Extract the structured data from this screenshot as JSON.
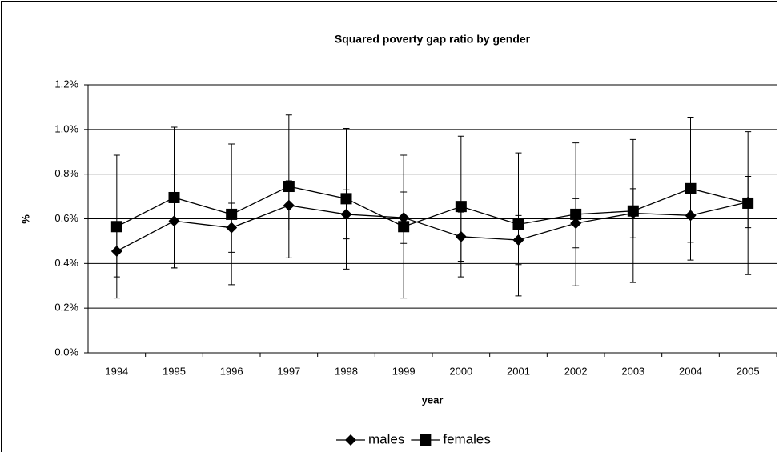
{
  "chart_data": {
    "type": "line",
    "title": "Squared poverty gap ratio by gender",
    "x_label": "year",
    "y_label": "%",
    "categories": [
      "1994",
      "1995",
      "1996",
      "1997",
      "1998",
      "1999",
      "2000",
      "2001",
      "2002",
      "2003",
      "2004",
      "2005"
    ],
    "series": [
      {
        "name": "males",
        "color": "#000000",
        "marker": "diamond",
        "values": [
          0.455,
          0.59,
          0.56,
          0.66,
          0.62,
          0.605,
          0.52,
          0.505,
          0.58,
          0.625,
          0.615,
          0.675
        ],
        "errors": [
          0.115,
          0.21,
          0.11,
          0.11,
          0.11,
          0.115,
          0.11,
          0.11,
          0.11,
          0.11,
          0.12,
          0.115
        ]
      },
      {
        "name": "females",
        "color": "#000000",
        "marker": "square",
        "values": [
          0.565,
          0.695,
          0.62,
          0.745,
          0.69,
          0.565,
          0.655,
          0.575,
          0.62,
          0.635,
          0.735,
          0.67
        ],
        "errors": [
          0.32,
          0.315,
          0.315,
          0.32,
          0.315,
          0.32,
          0.315,
          0.32,
          0.32,
          0.32,
          0.32,
          0.32
        ]
      }
    ],
    "ylim": [
      0,
      1.2
    ],
    "yticks": [
      {
        "value": 0,
        "label": "0.0%"
      },
      {
        "value": 0.2,
        "label": "0.2%"
      },
      {
        "value": 0.4,
        "label": "0.4%"
      },
      {
        "value": 0.6,
        "label": "0.6%"
      },
      {
        "value": 0.8,
        "label": "0.8%"
      },
      {
        "value": 1.0,
        "label": "1.0%"
      },
      {
        "value": 1.2,
        "label": "1.2%"
      }
    ],
    "grid": true,
    "legend": "bottom"
  }
}
